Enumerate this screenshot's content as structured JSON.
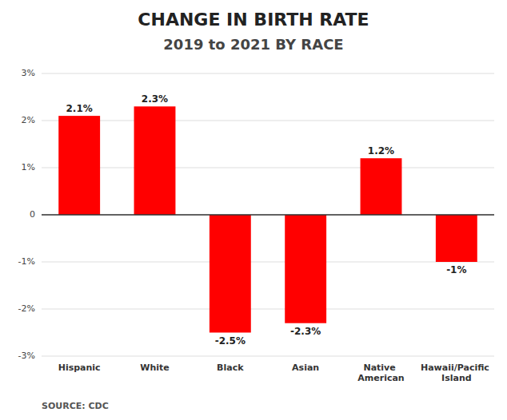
{
  "chart_data": {
    "type": "bar",
    "title": "CHANGE IN BIRTH RATE",
    "subtitle": "2019 to 2021 BY RACE",
    "categories": [
      "Hispanic",
      "White",
      "Black",
      "Asian",
      "Native American",
      "Hawaii/Pacific Island"
    ],
    "values": [
      2.1,
      2.3,
      -2.5,
      -2.3,
      1.2,
      -1.0
    ],
    "value_labels": [
      "2.1%",
      "2.3%",
      "-2.5%",
      "-2.3%",
      "1.2%",
      "-1%"
    ],
    "data_labels": true,
    "color": "#ff0000",
    "ylim": [
      -3.0,
      3.0
    ],
    "yticks": [
      {
        "value": -3,
        "label": "-3%"
      },
      {
        "value": -2,
        "label": "-2%"
      },
      {
        "value": -1,
        "label": "-1%"
      },
      0,
      {
        "value": 1,
        "label": "1%"
      },
      {
        "value": 2,
        "label": "2%"
      },
      {
        "value": 3,
        "label": "3%"
      }
    ],
    "grid": true,
    "annotations": [
      "SOURCE: CDC"
    ]
  }
}
